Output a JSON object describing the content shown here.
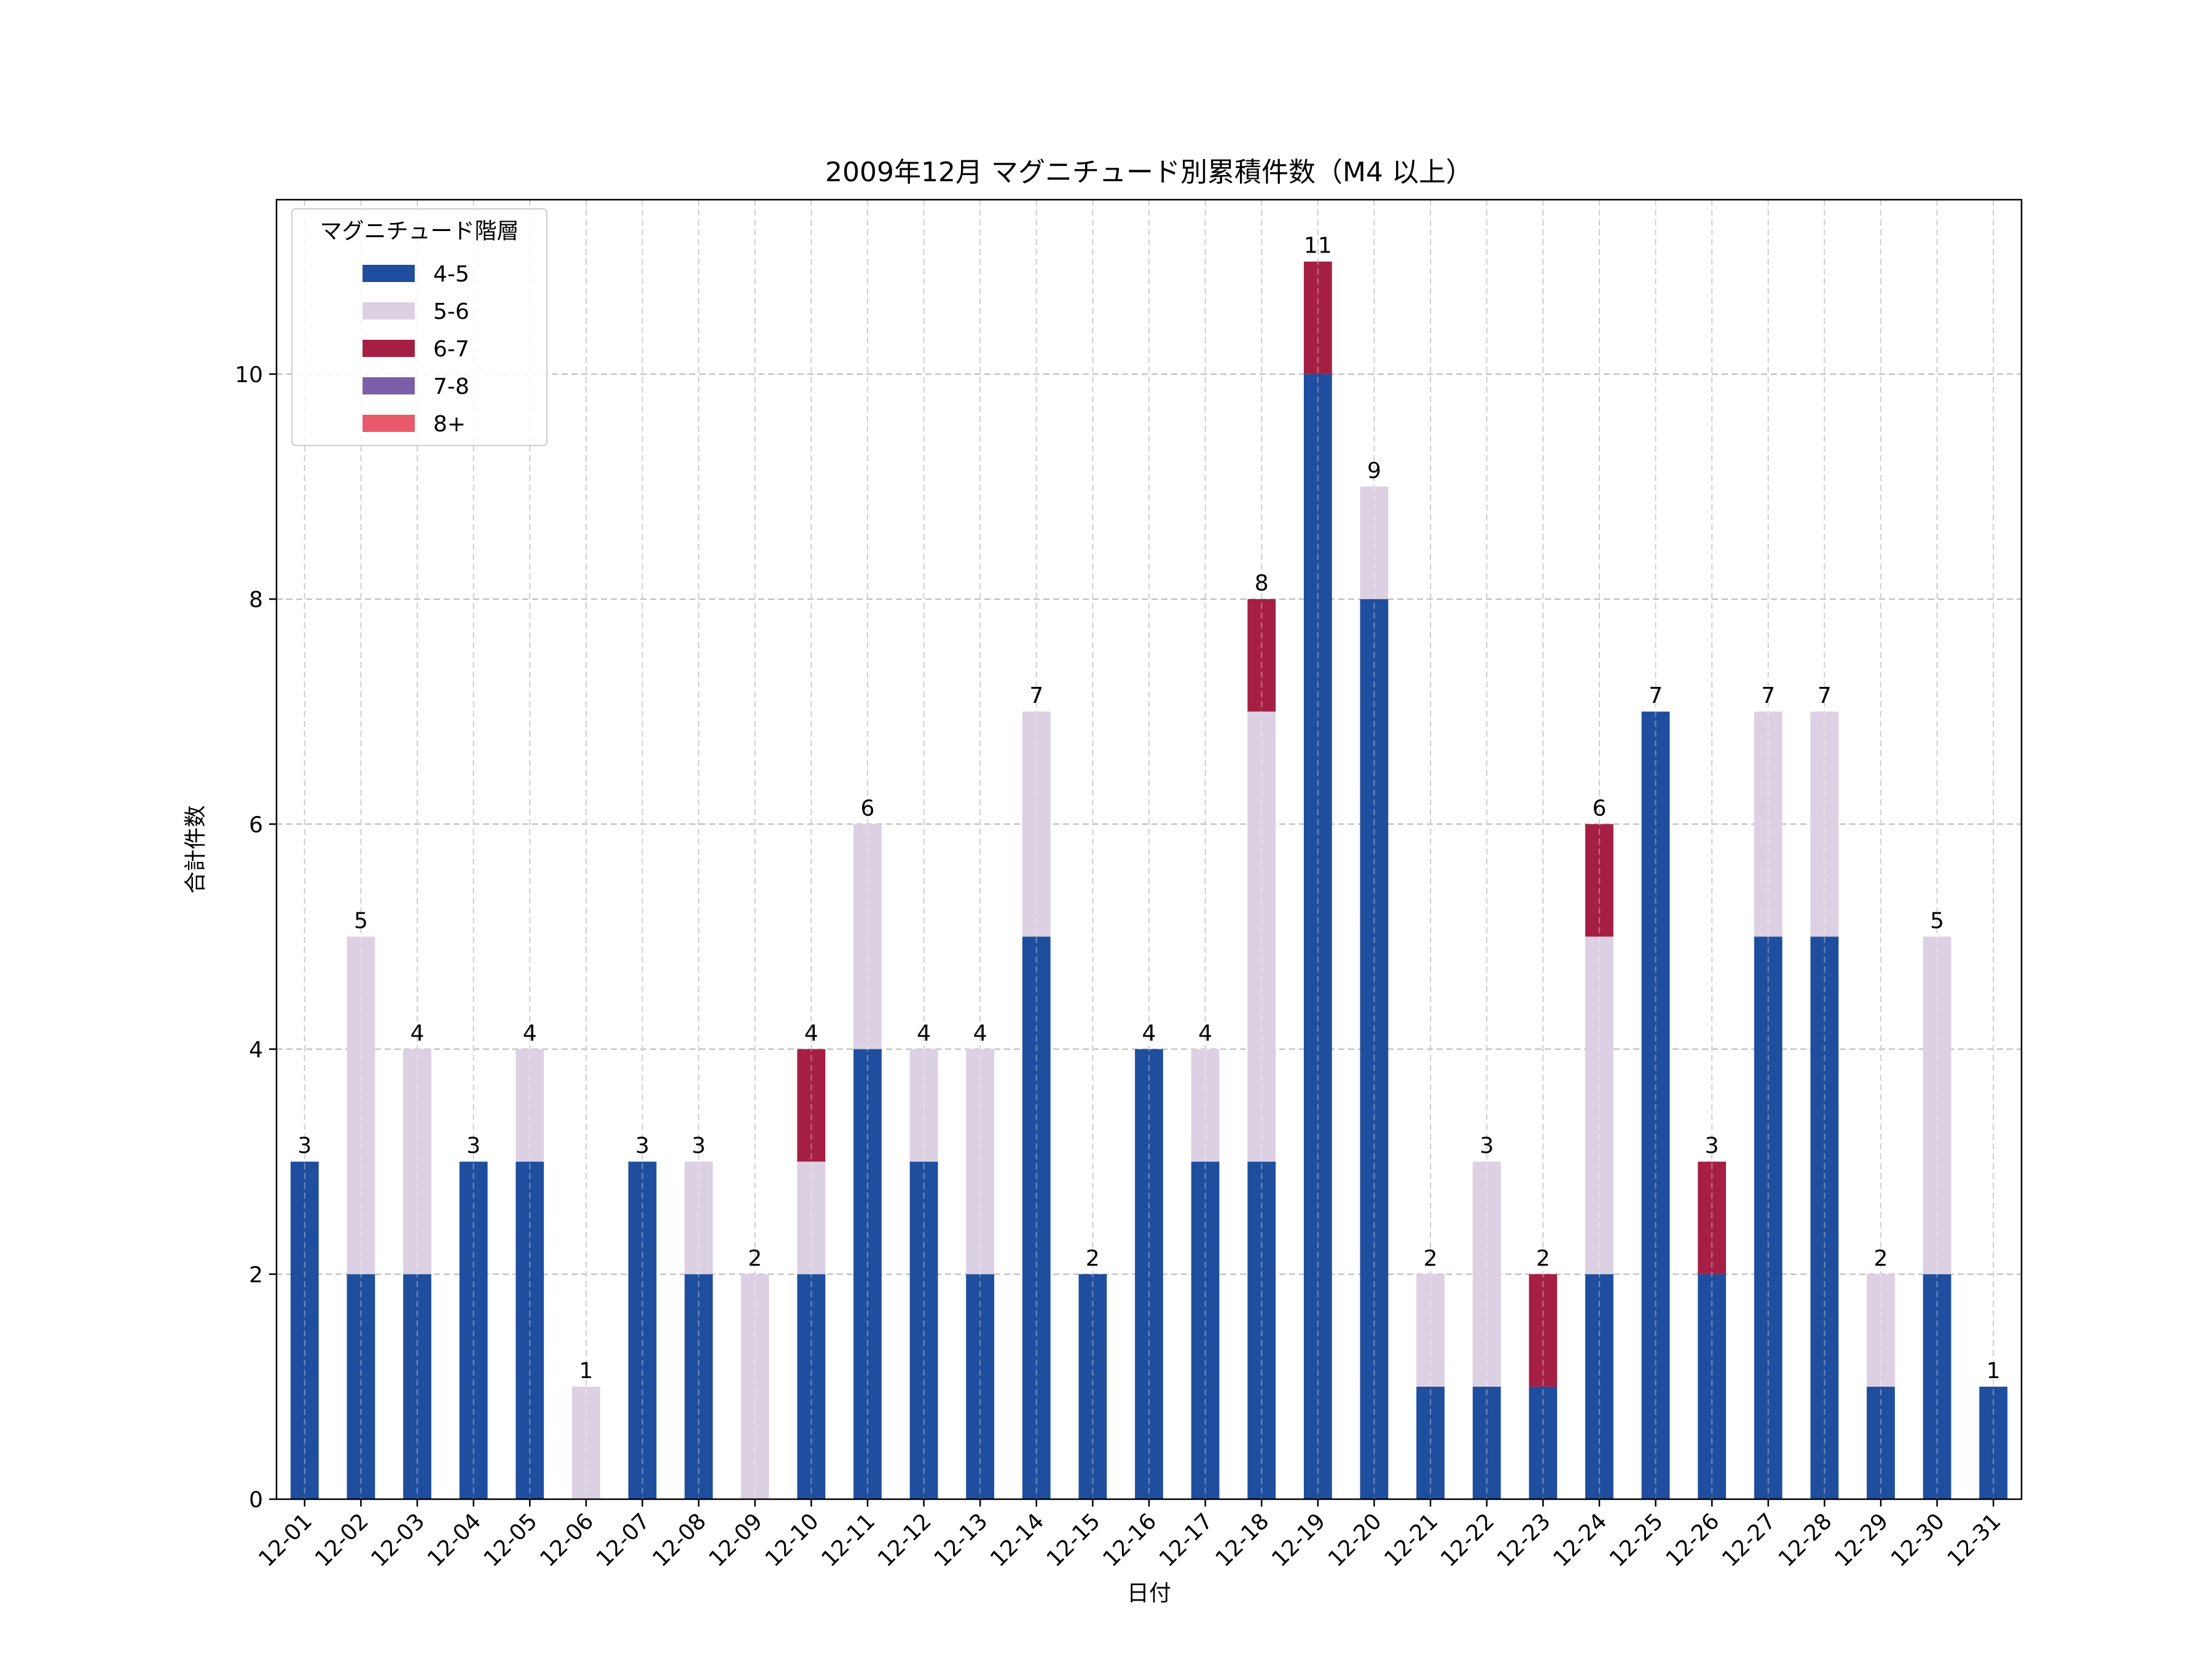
{
  "chart_data": {
    "type": "bar",
    "stacked": true,
    "title": "2009年12月 マグニチュード別累積件数（M4 以上）",
    "xlabel": "日付",
    "ylabel": "合計件数",
    "ylim": [
      0,
      11.55
    ],
    "yticks": [
      0,
      2,
      4,
      6,
      8,
      10
    ],
    "grid": true,
    "legend": {
      "title": "マグニチュード階層",
      "position": "top-left"
    },
    "categories": [
      "12-01",
      "12-02",
      "12-03",
      "12-04",
      "12-05",
      "12-06",
      "12-07",
      "12-08",
      "12-09",
      "12-10",
      "12-11",
      "12-12",
      "12-13",
      "12-14",
      "12-15",
      "12-16",
      "12-17",
      "12-18",
      "12-19",
      "12-20",
      "12-21",
      "12-22",
      "12-23",
      "12-24",
      "12-25",
      "12-26",
      "12-27",
      "12-28",
      "12-29",
      "12-30",
      "12-31"
    ],
    "series": [
      {
        "name": "4-5",
        "color": "#1f4e9e",
        "values": [
          3,
          2,
          2,
          3,
          3,
          0,
          3,
          2,
          0,
          2,
          4,
          3,
          2,
          5,
          2,
          4,
          3,
          3,
          10,
          8,
          1,
          1,
          1,
          2,
          7,
          2,
          5,
          5,
          1,
          2,
          1
        ]
      },
      {
        "name": "5-6",
        "color": "#dcd0e3",
        "values": [
          0,
          3,
          2,
          0,
          1,
          1,
          0,
          1,
          2,
          1,
          2,
          1,
          2,
          2,
          0,
          0,
          1,
          4,
          0,
          1,
          1,
          2,
          0,
          3,
          0,
          0,
          2,
          2,
          1,
          3,
          0
        ]
      },
      {
        "name": "6-7",
        "color": "#a51f45",
        "values": [
          0,
          0,
          0,
          0,
          0,
          0,
          0,
          0,
          0,
          1,
          0,
          0,
          0,
          0,
          0,
          0,
          0,
          1,
          1,
          0,
          0,
          0,
          1,
          1,
          0,
          1,
          0,
          0,
          0,
          0,
          0
        ]
      },
      {
        "name": "7-8",
        "color": "#7a5fa8",
        "values": [
          0,
          0,
          0,
          0,
          0,
          0,
          0,
          0,
          0,
          0,
          0,
          0,
          0,
          0,
          0,
          0,
          0,
          0,
          0,
          0,
          0,
          0,
          0,
          0,
          0,
          0,
          0,
          0,
          0,
          0,
          0
        ]
      },
      {
        "name": "8+",
        "color": "#e85a6b",
        "values": [
          0,
          0,
          0,
          0,
          0,
          0,
          0,
          0,
          0,
          0,
          0,
          0,
          0,
          0,
          0,
          0,
          0,
          0,
          0,
          0,
          0,
          0,
          0,
          0,
          0,
          0,
          0,
          0,
          0,
          0,
          0
        ]
      }
    ],
    "totals": [
      3,
      5,
      4,
      3,
      4,
      1,
      3,
      3,
      2,
      4,
      6,
      4,
      4,
      7,
      2,
      4,
      4,
      8,
      11,
      9,
      2,
      3,
      2,
      6,
      7,
      3,
      7,
      7,
      2,
      5,
      1
    ]
  }
}
